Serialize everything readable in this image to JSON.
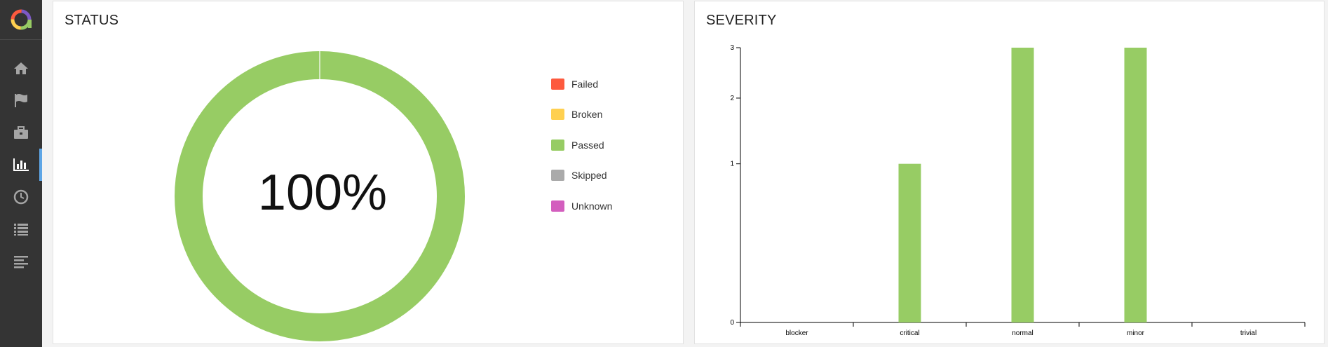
{
  "sidebar": {
    "logo_icon": "allure-logo-icon",
    "items": [
      {
        "id": "overview",
        "icon": "home-icon"
      },
      {
        "id": "categories",
        "icon": "flag-icon"
      },
      {
        "id": "suites",
        "icon": "briefcase-icon"
      },
      {
        "id": "graphs",
        "icon": "bar-chart-icon",
        "active": true
      },
      {
        "id": "timeline",
        "icon": "clock-icon"
      },
      {
        "id": "behaviors",
        "icon": "list-icon"
      },
      {
        "id": "packages",
        "icon": "align-left-icon"
      }
    ]
  },
  "status": {
    "title": "STATUS",
    "center_label": "100%",
    "legend": [
      {
        "label": "Failed",
        "color": "#fd5a3e"
      },
      {
        "label": "Broken",
        "color": "#ffd050"
      },
      {
        "label": "Passed",
        "color": "#97cc64"
      },
      {
        "label": "Skipped",
        "color": "#aaaaaa"
      },
      {
        "label": "Unknown",
        "color": "#d35ebe"
      }
    ]
  },
  "severity": {
    "title": "SEVERITY"
  },
  "chart_data": [
    {
      "type": "pie",
      "categories": [
        "Failed",
        "Broken",
        "Passed",
        "Skipped",
        "Unknown"
      ],
      "values": [
        0,
        0,
        100,
        0,
        0
      ],
      "title": "STATUS",
      "colors": [
        "#fd5a3e",
        "#ffd050",
        "#97cc64",
        "#aaaaaa",
        "#d35ebe"
      ],
      "legend": "right"
    },
    {
      "type": "bar",
      "categories": [
        "blocker",
        "critical",
        "normal",
        "minor",
        "trivial"
      ],
      "values": [
        0,
        1,
        3,
        3,
        0
      ],
      "title": "SEVERITY",
      "xlabel": "",
      "ylabel": "",
      "ylim": [
        0,
        3
      ],
      "yticks": [
        0,
        1,
        2,
        3
      ],
      "yscale": "sqrt",
      "color": "#97cc64",
      "grid": false
    }
  ]
}
